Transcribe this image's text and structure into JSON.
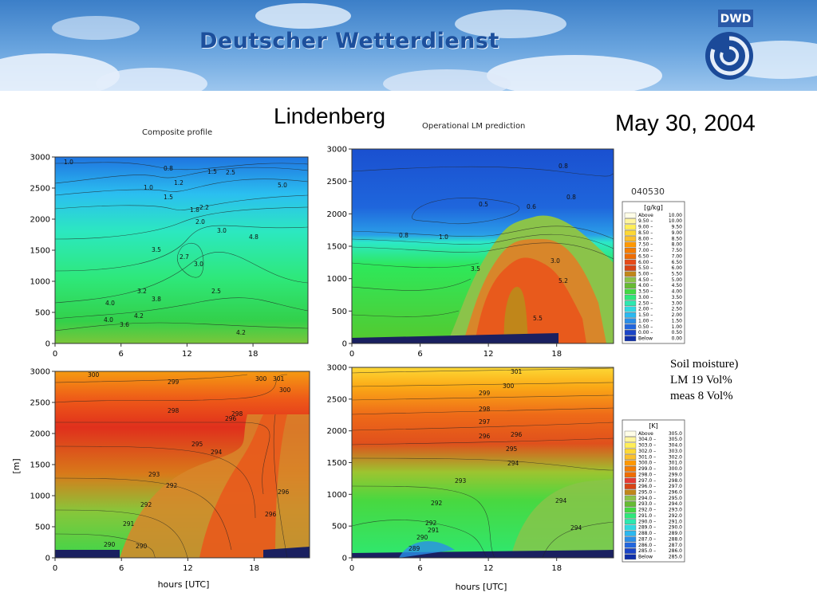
{
  "header": {
    "org_name": "Deutscher Wetterdienst",
    "logo_text": "DWD"
  },
  "titles": {
    "station": "Lindenberg",
    "date": "May 30, 2004"
  },
  "subtitles": {
    "left": "Composite profile",
    "right": "Operational LM prediction"
  },
  "run_id": "040530",
  "note": {
    "line1": "Soil moisture)",
    "line2": "LM 19 Vol%",
    "line3": "meas 8 Vol%"
  },
  "chart_data": [
    {
      "type": "heatmap",
      "panel": "humidity-composite",
      "title": "Composite profile",
      "x": {
        "ticks": [
          0,
          6,
          12,
          18
        ],
        "range": [
          0,
          23
        ]
      },
      "y": {
        "ticks": [
          0,
          500,
          1000,
          1500,
          2000,
          2500,
          3000
        ],
        "range": [
          0,
          3000
        ]
      },
      "contour_labels": [
        "1.0",
        "0.8",
        "1.0",
        "1.2",
        "1.5",
        "1.5",
        "1.8",
        "2.0",
        "2.2",
        "2.5",
        "2.7",
        "3.0",
        "3.0",
        "2.5",
        "3.2",
        "3.8",
        "4.0",
        "4.2",
        "4.8",
        "5.0",
        "3.6",
        "4.0",
        "4.2",
        "3.5"
      ]
    },
    {
      "type": "heatmap",
      "panel": "humidity-lm",
      "title": "Operational LM prediction",
      "x": {
        "ticks": [
          0,
          6,
          12,
          18
        ],
        "range": [
          0,
          23
        ]
      },
      "y": {
        "ticks": [
          0,
          500,
          1000,
          1500,
          2000,
          2500,
          3000
        ],
        "range": [
          0,
          3000
        ]
      },
      "contour_labels": [
        "0.8",
        "0.5",
        "0.8",
        "0.8",
        "1.0",
        "0.6",
        "3.5",
        "3.0",
        "5.2",
        "5.5"
      ]
    },
    {
      "type": "heatmap",
      "panel": "temperature-composite",
      "xlabel": "hours [UTC]",
      "ylabel": "[m]",
      "x": {
        "ticks": [
          0,
          6,
          12,
          18
        ],
        "range": [
          0,
          23
        ]
      },
      "y": {
        "ticks": [
          0,
          500,
          1000,
          1500,
          2000,
          2500,
          3000
        ],
        "range": [
          0,
          3000
        ]
      },
      "contour_labels": [
        "300",
        "299",
        "298",
        "296",
        "295",
        "294",
        "293",
        "292",
        "292",
        "291",
        "290",
        "290",
        "300",
        "301",
        "300",
        "298",
        "296",
        "296"
      ]
    },
    {
      "type": "heatmap",
      "panel": "temperature-lm",
      "xlabel": "hours [UTC]",
      "x": {
        "ticks": [
          0,
          6,
          12,
          18
        ],
        "range": [
          0,
          23
        ]
      },
      "y": {
        "ticks": [
          0,
          500,
          1000,
          1500,
          2000,
          2500,
          3000
        ],
        "range": [
          0,
          3000
        ]
      },
      "contour_labels": [
        "301",
        "300",
        "299",
        "298",
        "297",
        "296",
        "296",
        "295",
        "294",
        "293",
        "292",
        "292",
        "291",
        "290",
        "289",
        "294",
        "294"
      ]
    }
  ],
  "legend_humidity": {
    "unit": "[g/kg]",
    "rows": [
      {
        "label": "Above",
        "value": "10.00",
        "color": "#fffde7"
      },
      {
        "label": "9.50 –",
        "value": "10.00",
        "color": "#fff59d"
      },
      {
        "label": "9.00 –",
        "value": "9.50",
        "color": "#ffee58"
      },
      {
        "label": "8.50 –",
        "value": "9.00",
        "color": "#fdd835"
      },
      {
        "label": "8.00 –",
        "value": "8.50",
        "color": "#fbc02d"
      },
      {
        "label": "7.50 –",
        "value": "8.00",
        "color": "#ff9800"
      },
      {
        "label": "7.00 –",
        "value": "7.50",
        "color": "#f57c00"
      },
      {
        "label": "6.50 –",
        "value": "7.00",
        "color": "#ef6c00"
      },
      {
        "label": "6.00 –",
        "value": "6.50",
        "color": "#e64a19"
      },
      {
        "label": "5.50 –",
        "value": "6.00",
        "color": "#d84315"
      },
      {
        "label": "5.00 –",
        "value": "5.50",
        "color": "#c0861a"
      },
      {
        "label": "4.50 –",
        "value": "5.00",
        "color": "#8bc34a"
      },
      {
        "label": "4.00 –",
        "value": "4.50",
        "color": "#66bb33"
      },
      {
        "label": "3.50 –",
        "value": "4.00",
        "color": "#43d843"
      },
      {
        "label": "3.00 –",
        "value": "3.50",
        "color": "#2ee87a"
      },
      {
        "label": "2.50 –",
        "value": "3.00",
        "color": "#2ce8b0"
      },
      {
        "label": "2.00 –",
        "value": "2.50",
        "color": "#30d8e0"
      },
      {
        "label": "1.50 –",
        "value": "2.00",
        "color": "#2bb8f0"
      },
      {
        "label": "1.00 –",
        "value": "1.50",
        "color": "#2a8ee8"
      },
      {
        "label": "0.50 –",
        "value": "1.00",
        "color": "#2266dd"
      },
      {
        "label": "0.00 –",
        "value": "0.50",
        "color": "#1a44c8"
      },
      {
        "label": "Below",
        "value": "0.00",
        "color": "#1030a8"
      }
    ]
  },
  "legend_temperature": {
    "unit": "[K]",
    "rows": [
      {
        "label": "Above",
        "value": "305.0",
        "color": "#fffde7"
      },
      {
        "label": "304.0 –",
        "value": "305.0",
        "color": "#fff59d"
      },
      {
        "label": "303.0 –",
        "value": "304.0",
        "color": "#ffee58"
      },
      {
        "label": "302.0 –",
        "value": "303.0",
        "color": "#fdd835"
      },
      {
        "label": "301.0 –",
        "value": "302.0",
        "color": "#fbc02d"
      },
      {
        "label": "300.0 –",
        "value": "301.0",
        "color": "#ff9800"
      },
      {
        "label": "299.0 –",
        "value": "300.0",
        "color": "#f57c00"
      },
      {
        "label": "298.0 –",
        "value": "299.0",
        "color": "#ef6c00"
      },
      {
        "label": "297.0 –",
        "value": "298.0",
        "color": "#e53935"
      },
      {
        "label": "296.0 –",
        "value": "297.0",
        "color": "#d84315"
      },
      {
        "label": "295.0 –",
        "value": "296.0",
        "color": "#c0861a"
      },
      {
        "label": "294.0 –",
        "value": "295.0",
        "color": "#8bc34a"
      },
      {
        "label": "293.0 –",
        "value": "294.0",
        "color": "#66bb33"
      },
      {
        "label": "292.0 –",
        "value": "293.0",
        "color": "#43d843"
      },
      {
        "label": "291.0 –",
        "value": "292.0",
        "color": "#2ee87a"
      },
      {
        "label": "290.0 –",
        "value": "291.0",
        "color": "#2ce8b0"
      },
      {
        "label": "289.0 –",
        "value": "290.0",
        "color": "#30d8e0"
      },
      {
        "label": "288.0 –",
        "value": "289.0",
        "color": "#2bb8f0"
      },
      {
        "label": "287.0 –",
        "value": "288.0",
        "color": "#2a8ee8"
      },
      {
        "label": "286.0 –",
        "value": "287.0",
        "color": "#2266dd"
      },
      {
        "label": "285.0 –",
        "value": "286.0",
        "color": "#1a44c8"
      },
      {
        "label": "Below",
        "value": "285.0",
        "color": "#1030a8"
      }
    ]
  }
}
